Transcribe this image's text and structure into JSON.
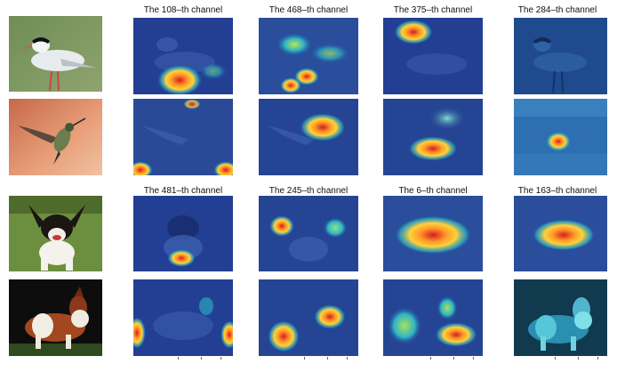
{
  "rows": [
    {
      "subject": "tern",
      "channel_titles": [
        "The 108–th channel",
        "The 468–th channel",
        "The 375–th channel",
        "The 284–th channel"
      ]
    },
    {
      "subject": "hummingbird",
      "channel_titles": []
    },
    {
      "subject": "puppy",
      "channel_titles": [
        "The 481–th channel",
        "The 245–th channel",
        "The 6–th channel",
        "The 163–th channel"
      ]
    },
    {
      "subject": "collie",
      "channel_titles": []
    }
  ],
  "colors": {
    "heat_low": "#1f3d8f",
    "heat_mid": "#2fb4c6",
    "heat_high": "#ffd23a",
    "heat_peak": "#d41e1e"
  }
}
